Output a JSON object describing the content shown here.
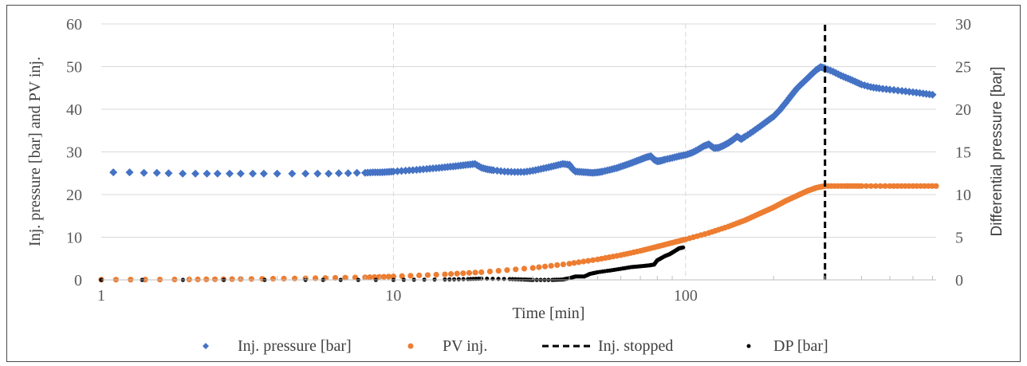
{
  "chart_data": {
    "type": "scatter",
    "title": "",
    "xlabel": "Time [min]",
    "ylabel": "Inj. pressure [bar] and PV inj.",
    "y2label": "Differential pressure [bar]",
    "x_scale": "log",
    "xlim": [
      1,
      720
    ],
    "ylim": [
      0,
      60
    ],
    "y2lim": [
      0,
      30
    ],
    "x_ticks": [
      "1",
      "10",
      "100"
    ],
    "y_ticks": [
      "0",
      "10",
      "20",
      "30",
      "40",
      "50",
      "60"
    ],
    "y2_ticks": [
      "0",
      "5",
      "10",
      "15",
      "20",
      "25",
      "30"
    ],
    "grid": true,
    "legend_position": "bottom",
    "series": [
      {
        "name": "Inj. pressure [bar]",
        "axis": "left",
        "marker": "diamond",
        "color": "#4472C4",
        "x": [
          1.1,
          1.25,
          1.4,
          1.55,
          1.7,
          1.9,
          2.1,
          2.3,
          2.5,
          2.75,
          3.0,
          3.3,
          3.6,
          4.0,
          4.5,
          5.0,
          5.5,
          6,
          6.5,
          7,
          7.5,
          8,
          8.5,
          9,
          9.5,
          10,
          11,
          12,
          13,
          14,
          15,
          16,
          17,
          18,
          19,
          20,
          21,
          22,
          24,
          26,
          28,
          30,
          32,
          34,
          36,
          38,
          40,
          41,
          42,
          44,
          46,
          48,
          50,
          52,
          55,
          58,
          61,
          64,
          67,
          70,
          73,
          76,
          78,
          80,
          82,
          85,
          90,
          95,
          100,
          105,
          110,
          115,
          120,
          125,
          130,
          135,
          140,
          145,
          150,
          155,
          160,
          170,
          180,
          190,
          200,
          210,
          220,
          230,
          240,
          250,
          260,
          270,
          280,
          290,
          300,
          320,
          340,
          360,
          380,
          400,
          430,
          460,
          500,
          550,
          600,
          650,
          700
        ],
        "y": [
          25.2,
          25.2,
          25.1,
          25.1,
          25.0,
          24.9,
          24.9,
          24.9,
          24.9,
          24.9,
          24.9,
          24.9,
          24.9,
          24.9,
          24.9,
          24.9,
          24.9,
          24.9,
          25.0,
          25.0,
          25.1,
          25.1,
          25.2,
          25.2,
          25.3,
          25.4,
          25.6,
          25.8,
          26.0,
          26.2,
          26.4,
          26.6,
          26.8,
          27.0,
          27.2,
          26.3,
          25.9,
          25.7,
          25.4,
          25.3,
          25.3,
          25.6,
          26.0,
          26.4,
          26.8,
          27.2,
          27.0,
          26.0,
          25.4,
          25.3,
          25.2,
          25.1,
          25.2,
          25.4,
          25.8,
          26.2,
          26.7,
          27.2,
          27.7,
          28.2,
          28.7,
          29.0,
          28.2,
          27.8,
          27.9,
          28.2,
          28.6,
          29.0,
          29.3,
          29.8,
          30.5,
          31.3,
          31.8,
          30.9,
          31.0,
          31.5,
          32.1,
          32.8,
          33.6,
          33.0,
          33.6,
          34.8,
          36.0,
          37.2,
          38.3,
          39.8,
          41.5,
          43.2,
          44.8,
          46.0,
          47.1,
          48.2,
          49.2,
          49.9,
          49.6,
          48.8,
          47.9,
          47.2,
          46.5,
          45.8,
          45.2,
          44.9,
          44.6,
          44.3,
          44.0,
          43.7,
          43.4
        ]
      },
      {
        "name": "PV inj.",
        "axis": "left",
        "marker": "circle",
        "color": "#ED7D31",
        "x": [
          1,
          2,
          3,
          5,
          8,
          10,
          15,
          20,
          30,
          40,
          50,
          60,
          70,
          80,
          90,
          100,
          120,
          140,
          160,
          180,
          200,
          220,
          240,
          260,
          280,
          300,
          350,
          400,
          500,
          600,
          720
        ],
        "y": [
          0.05,
          0.1,
          0.2,
          0.35,
          0.6,
          0.8,
          1.3,
          1.8,
          2.8,
          3.8,
          4.8,
          5.8,
          6.8,
          7.8,
          8.7,
          9.5,
          11.0,
          12.5,
          14.0,
          15.6,
          17.0,
          18.5,
          19.7,
          20.8,
          21.6,
          22.0,
          22.0,
          22.0,
          22.0,
          22.0,
          22.0
        ]
      },
      {
        "name": "Inj. stopped",
        "axis": "left",
        "style": "dashed",
        "color": "#000000",
        "x": [
          300,
          300
        ],
        "y": [
          0,
          60
        ]
      },
      {
        "name": "DP [bar]",
        "axis": "right",
        "marker": "dot",
        "color": "#000000",
        "x": [
          1,
          5,
          10,
          15,
          18,
          20,
          25,
          28,
          30,
          35,
          38,
          40,
          42,
          45,
          47,
          50,
          55,
          60,
          65,
          70,
          75,
          78,
          80,
          82,
          85,
          88,
          90,
          93,
          95,
          98
        ],
        "y": [
          0,
          0,
          0,
          0.05,
          0.1,
          0.15,
          0.1,
          0.05,
          0,
          0,
          0.05,
          0.2,
          0.4,
          0.4,
          0.7,
          0.9,
          1.1,
          1.3,
          1.5,
          1.6,
          1.7,
          1.8,
          2.3,
          2.5,
          2.8,
          3.0,
          3.2,
          3.5,
          3.7,
          3.8
        ]
      }
    ]
  }
}
